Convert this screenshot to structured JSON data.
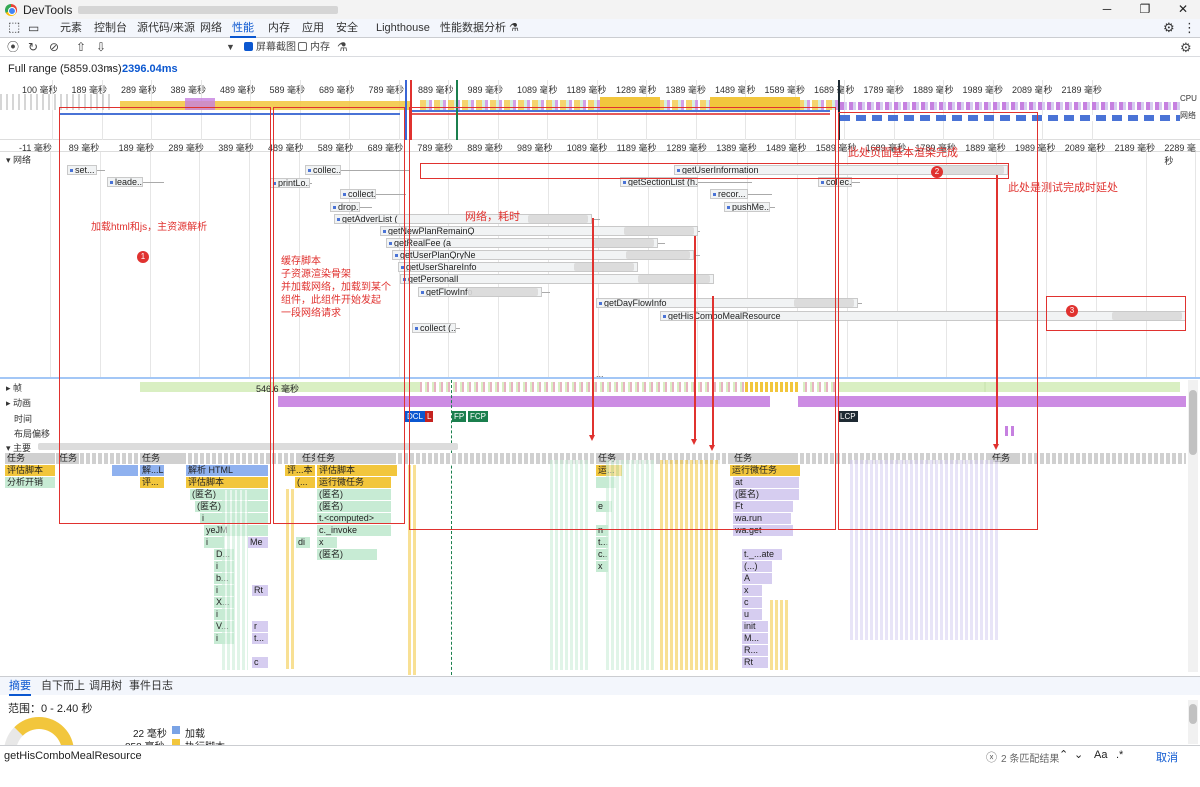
{
  "window": {
    "title": "DevTools",
    "minimize": "─",
    "maximize": "❐",
    "close": "✕"
  },
  "tabs": [
    "元素",
    "控制台",
    "源代码/来源",
    "网络",
    "性能",
    "内存",
    "应用",
    "安全",
    "Lighthouse",
    "性能数据分析 ⚗"
  ],
  "selected_tab": "性能",
  "toolbar": {
    "screenshot_label": "屏幕截图",
    "memory_label": "内存",
    "screenshot_checked": true,
    "memory_checked": false
  },
  "range": {
    "full_label": "Full range (5859.03ms)",
    "selected_label": "2396.04ms"
  },
  "overview_ticks": [
    "100 毫秒",
    "189 毫秒",
    "289 毫秒",
    "389 毫秒",
    "489 毫秒",
    "589 毫秒",
    "689 毫秒",
    "789 毫秒",
    "889 毫秒",
    "989 毫秒",
    "1089 毫秒",
    "1189 毫秒",
    "1289 毫秒",
    "1389 毫秒",
    "1489 毫秒",
    "1589 毫秒",
    "1689 毫秒",
    "1789 毫秒",
    "1889 毫秒",
    "1989 毫秒",
    "2089 毫秒",
    "2189 毫秒"
  ],
  "overview_labels": {
    "cpu": "CPU",
    "net": "网络"
  },
  "ruler_ticks": [
    "-11 毫秒",
    "89 毫秒",
    "189 毫秒",
    "289 毫秒",
    "389 毫秒",
    "489 毫秒",
    "589 毫秒",
    "689 毫秒",
    "789 毫秒",
    "889 毫秒",
    "989 毫秒",
    "1089 毫秒",
    "1189 毫秒",
    "1289 毫秒",
    "1389 毫秒",
    "1489 毫秒",
    "1589 毫秒",
    "1689 毫秒",
    "1789 毫秒",
    "1889 毫秒",
    "1989 毫秒",
    "2089 毫秒",
    "2189 毫秒",
    "2289 毫秒"
  ],
  "network": {
    "label": "网络",
    "requests": [
      "set...",
      "leade...",
      "printLo...",
      "collec...",
      "collect...",
      "drop...",
      "getAdverList (",
      "getNewPlanRemainQ",
      "getRealFee (a",
      "getUserPlanQryNe",
      "getUserShareInfo",
      "getPersonalI",
      "getFlowInfo",
      "collect (...",
      "getUserInformation",
      "getSectionList (h...",
      "collec...",
      "recor...",
      "pushMe...",
      "getDayFlowInfo",
      "getHisComboMealResource"
    ],
    "ellipsis": "..."
  },
  "tracks": {
    "frames": "帧",
    "frames_value": "546.6 毫秒",
    "animation": "动画",
    "timings": "时间",
    "layout_shift": "布局偏移",
    "main": "主要"
  },
  "markers": {
    "dcl": "DCL",
    "l": "L",
    "fp": "FP",
    "fcp": "FCP",
    "lcp": "LCP"
  },
  "flame": {
    "row_labels": [
      "任务",
      "评估脚本",
      "分析开销"
    ],
    "items": [
      "任务",
      "任务",
      "任务",
      "任务",
      "任务",
      "任务",
      "任务",
      "解...L",
      "解析 HTML",
      "评...本",
      "评估脚本",
      "运...",
      "运行微任务",
      "评...",
      "评估脚本",
      "(...",
      "运行微任务",
      "(匿名)",
      "(...",
      "(匿名)",
      "at",
      "(匿名)",
      "(匿名)",
      "(匿名)",
      "(...",
      "(匿名)",
      "(匿名)",
      "e",
      "Ft",
      "i",
      "t.<computed>",
      "wa.run",
      "yeJM",
      "c._invoke",
      "n",
      "wa.get",
      "i",
      "Me",
      "di",
      "x",
      "t...",
      "D...",
      "(匿名)",
      "c...",
      "t._...ate",
      "i",
      "x",
      "(...)",
      "b...",
      "A",
      "i",
      "Rt",
      "x",
      "X...",
      "c",
      "i",
      "u",
      "V...",
      "r",
      "init",
      "i",
      "t...",
      "M...",
      "R...",
      "c",
      "Rt"
    ]
  },
  "annotations": {
    "circle1": "1",
    "text1": "加载html和js，主资源解析",
    "text2": "缓存脚本\n子资源渲染骨架\n并加载网络，加载到某个\n组件，此组件开始发起\n一段网络请求",
    "text_net": "网络，耗时",
    "circle2": "2",
    "text_render": "此处页面基本渲染完成",
    "text_delay": "此处是测试完成时延处",
    "circle3": "3"
  },
  "bottom": {
    "tabs": [
      "摘要",
      "自下而上",
      "调用树",
      "事件日志"
    ],
    "range_label": "范围：0 - 2.40 秒",
    "legend": [
      {
        "value": "22 毫秒",
        "label": "加载",
        "color": "#7aa3e5"
      },
      {
        "value": "858 毫秒",
        "label": "执行脚本",
        "color": "#f2c63c"
      }
    ]
  },
  "search": {
    "value": "getHisComboMealResource",
    "matches": "2 条匹配结果",
    "aa": "Aa",
    "regex": ".*",
    "cancel": "取消"
  }
}
